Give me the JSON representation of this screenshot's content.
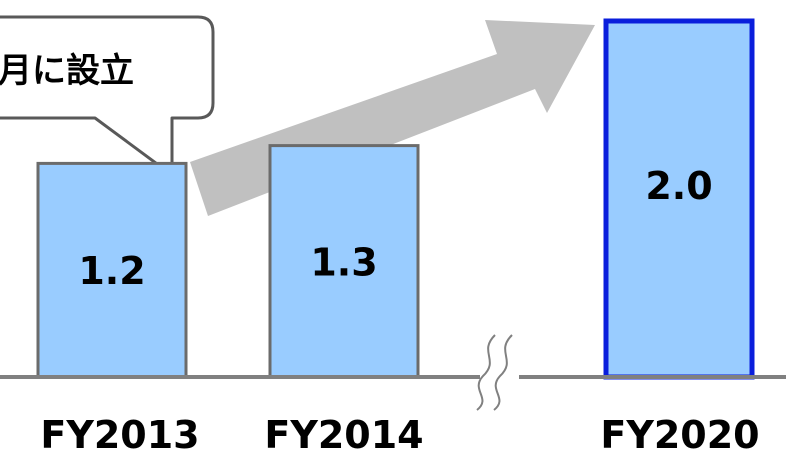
{
  "chart_data": {
    "type": "bar",
    "categories": [
      "FY2013",
      "FY2014",
      "FY2020"
    ],
    "values": [
      1.2,
      1.3,
      2.0
    ],
    "value_labels": [
      "1.2",
      "1.3",
      "2.0"
    ],
    "title": "",
    "xlabel": "",
    "ylabel": "",
    "ylim": [
      0,
      2.0
    ],
    "highlight_category": "FY2020",
    "axis_break_between": [
      "FY2014",
      "FY2020"
    ],
    "growth_arrow": {
      "from": "FY2013",
      "to": "FY2020"
    }
  },
  "callout": {
    "text": "月に設立",
    "attached_to": "FY2013"
  },
  "colors": {
    "bar_fill": "#99ccff",
    "bar_border": "#6b6b6b",
    "highlight_border": "#0a1edc",
    "arrow": "#c0c0c0",
    "axis": "#808080",
    "callout_border": "#595959",
    "text": "#000000"
  }
}
